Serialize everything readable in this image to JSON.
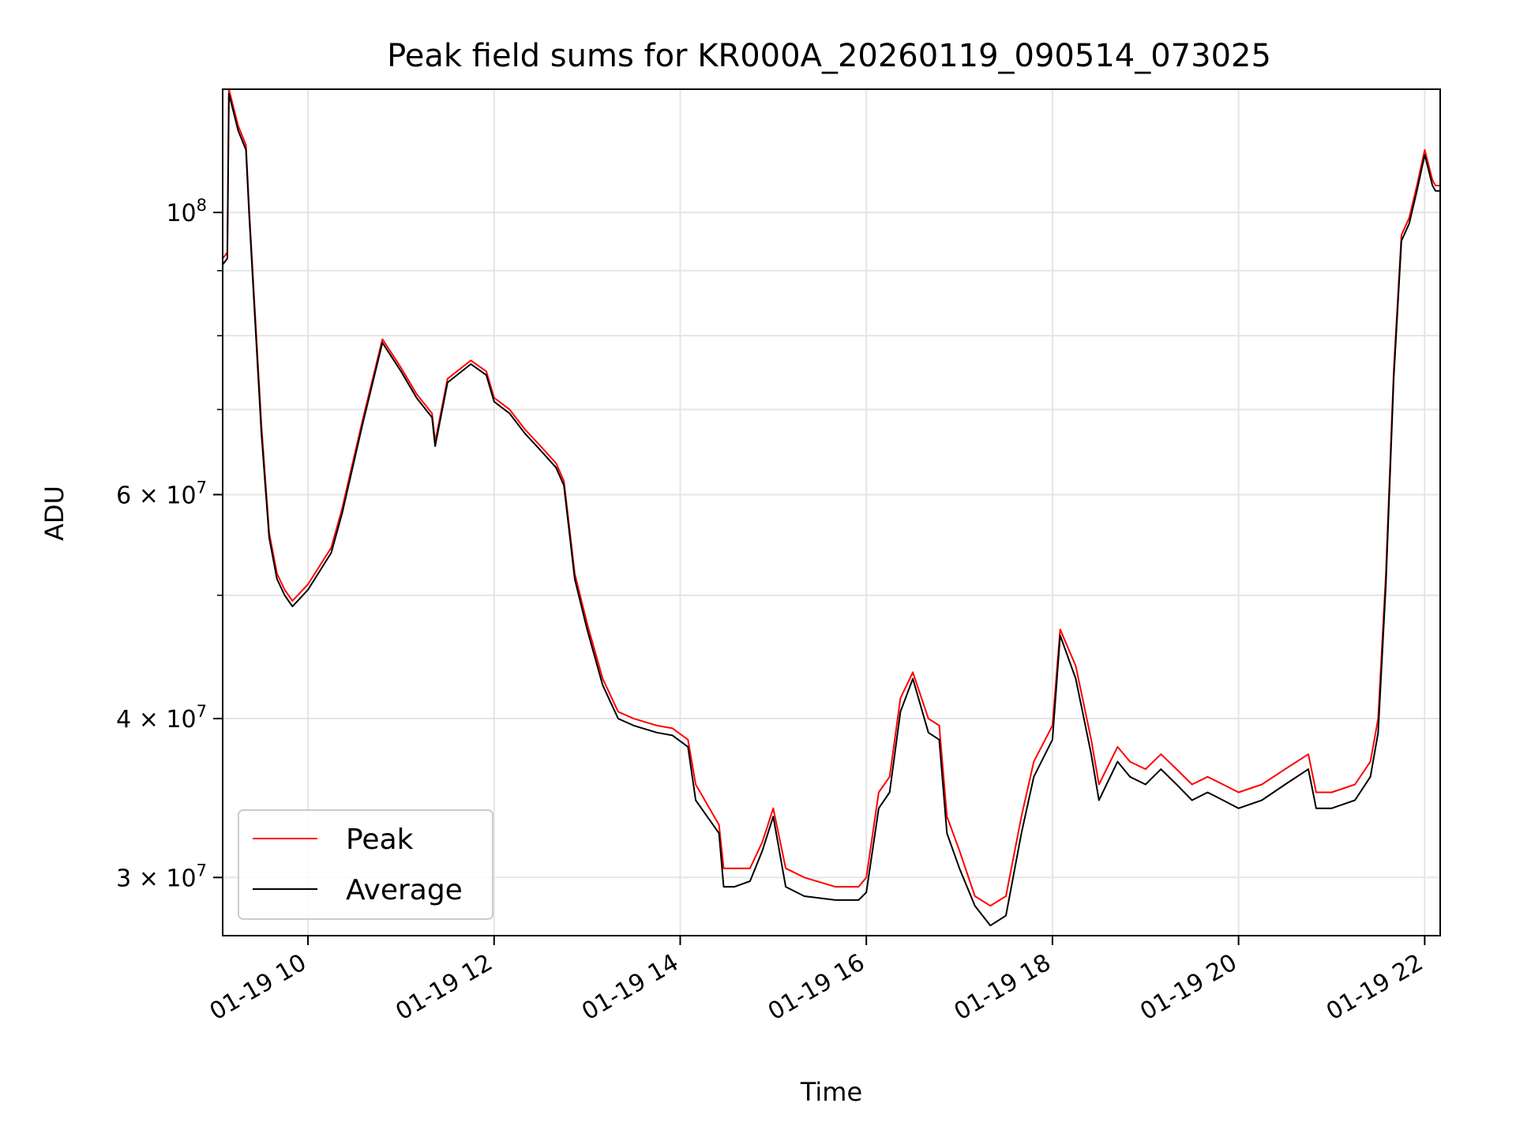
{
  "chart_data": {
    "type": "line",
    "title": "Peak field sums for KR000A_20260119_090514_073025",
    "xlabel": "Time",
    "ylabel": "ADU",
    "xlim": [
      "2026-01-19 09:05",
      "2026-01-19 22:10"
    ],
    "ylim": [
      27000000,
      125000000
    ],
    "yscale": "log",
    "grid": true,
    "legend": {
      "placement": "lower-left"
    },
    "x_ticks": [
      {
        "value": "2026-01-19 10:00",
        "label": "01-19 10"
      },
      {
        "value": "2026-01-19 12:00",
        "label": "01-19 12"
      },
      {
        "value": "2026-01-19 14:00",
        "label": "01-19 14"
      },
      {
        "value": "2026-01-19 16:00",
        "label": "01-19 16"
      },
      {
        "value": "2026-01-19 18:00",
        "label": "01-19 18"
      },
      {
        "value": "2026-01-19 20:00",
        "label": "01-19 20"
      },
      {
        "value": "2026-01-19 22:00",
        "label": "01-19 22"
      }
    ],
    "y_ticks": [
      {
        "value": 30000000,
        "base": "3",
        "mult": "×",
        "exp_base": "10",
        "exp": "7"
      },
      {
        "value": 40000000,
        "base": "4",
        "mult": "×",
        "exp_base": "10",
        "exp": "7"
      },
      {
        "value": 60000000,
        "base": "6",
        "mult": "×",
        "exp_base": "10",
        "exp": "7"
      },
      {
        "value": 100000000,
        "base": "",
        "mult": "",
        "exp_base": "10",
        "exp": "8"
      }
    ],
    "y_minor_ticks": [
      50000000,
      70000000,
      80000000,
      90000000
    ],
    "series": [
      {
        "name": "Peak",
        "color": "#ff0000",
        "x": [
          "2026-01-19 09:05",
          "2026-01-19 09:08",
          "2026-01-19 09:09",
          "2026-01-19 09:15",
          "2026-01-19 09:20",
          "2026-01-19 09:22",
          "2026-01-19 09:25",
          "2026-01-19 09:30",
          "2026-01-19 09:35",
          "2026-01-19 09:40",
          "2026-01-19 09:45",
          "2026-01-19 09:50",
          "2026-01-19 10:00",
          "2026-01-19 10:15",
          "2026-01-19 10:22",
          "2026-01-19 10:35",
          "2026-01-19 10:48",
          "2026-01-19 11:00",
          "2026-01-19 11:10",
          "2026-01-19 11:20",
          "2026-01-19 11:22",
          "2026-01-19 11:30",
          "2026-01-19 11:45",
          "2026-01-19 11:55",
          "2026-01-19 12:00",
          "2026-01-19 12:10",
          "2026-01-19 12:20",
          "2026-01-19 12:30",
          "2026-01-19 12:40",
          "2026-01-19 12:45",
          "2026-01-19 12:52",
          "2026-01-19 13:00",
          "2026-01-19 13:10",
          "2026-01-19 13:20",
          "2026-01-19 13:30",
          "2026-01-19 13:45",
          "2026-01-19 13:55",
          "2026-01-19 14:05",
          "2026-01-19 14:10",
          "2026-01-19 14:25",
          "2026-01-19 14:28",
          "2026-01-19 14:35",
          "2026-01-19 14:45",
          "2026-01-19 14:53",
          "2026-01-19 15:00",
          "2026-01-19 15:08",
          "2026-01-19 15:20",
          "2026-01-19 15:40",
          "2026-01-19 15:55",
          "2026-01-19 16:00",
          "2026-01-19 16:08",
          "2026-01-19 16:15",
          "2026-01-19 16:22",
          "2026-01-19 16:30",
          "2026-01-19 16:40",
          "2026-01-19 16:47",
          "2026-01-19 16:52",
          "2026-01-19 17:00",
          "2026-01-19 17:10",
          "2026-01-19 17:20",
          "2026-01-19 17:30",
          "2026-01-19 17:40",
          "2026-01-19 17:48",
          "2026-01-19 18:00",
          "2026-01-19 18:05",
          "2026-01-19 18:15",
          "2026-01-19 18:25",
          "2026-01-19 18:30",
          "2026-01-19 18:42",
          "2026-01-19 18:50",
          "2026-01-19 19:00",
          "2026-01-19 19:10",
          "2026-01-19 19:20",
          "2026-01-19 19:30",
          "2026-01-19 19:40",
          "2026-01-19 19:50",
          "2026-01-19 20:00",
          "2026-01-19 20:15",
          "2026-01-19 20:30",
          "2026-01-19 20:45",
          "2026-01-19 20:50",
          "2026-01-19 21:00",
          "2026-01-19 21:15",
          "2026-01-19 21:25",
          "2026-01-19 21:30",
          "2026-01-19 21:35",
          "2026-01-19 21:40",
          "2026-01-19 21:45",
          "2026-01-19 21:50",
          "2026-01-19 21:55",
          "2026-01-19 22:00",
          "2026-01-19 22:05",
          "2026-01-19 22:07",
          "2026-01-19 22:10"
        ],
        "y": [
          92000000,
          93000000,
          125000000,
          117000000,
          113000000,
          101000000,
          87000000,
          68000000,
          56000000,
          52000000,
          50500000,
          49500000,
          51000000,
          54500000,
          58500000,
          68500000,
          79500000,
          75500000,
          72000000,
          69500000,
          66000000,
          74000000,
          76500000,
          75000000,
          71500000,
          70000000,
          67500000,
          65500000,
          63500000,
          61500000,
          52000000,
          47500000,
          43000000,
          40500000,
          40000000,
          39500000,
          39300000,
          38500000,
          35500000,
          33000000,
          30500000,
          30500000,
          30500000,
          32000000,
          34000000,
          30500000,
          30000000,
          29500000,
          29500000,
          30000000,
          35000000,
          36000000,
          41500000,
          43500000,
          40000000,
          39500000,
          33500000,
          31500000,
          29000000,
          28500000,
          29000000,
          33500000,
          37000000,
          39500000,
          47000000,
          44000000,
          38500000,
          35500000,
          38000000,
          37000000,
          36500000,
          37500000,
          36500000,
          35500000,
          36000000,
          35500000,
          35000000,
          35500000,
          36500000,
          37500000,
          35000000,
          35000000,
          35500000,
          37000000,
          40000000,
          52000000,
          75000000,
          96000000,
          99000000,
          105000000,
          112000000,
          106000000,
          105000000,
          105000000
        ]
      },
      {
        "name": "Average",
        "color": "#000000",
        "x": [
          "2026-01-19 09:05",
          "2026-01-19 09:08",
          "2026-01-19 09:09",
          "2026-01-19 09:15",
          "2026-01-19 09:20",
          "2026-01-19 09:22",
          "2026-01-19 09:25",
          "2026-01-19 09:30",
          "2026-01-19 09:35",
          "2026-01-19 09:40",
          "2026-01-19 09:45",
          "2026-01-19 09:50",
          "2026-01-19 10:00",
          "2026-01-19 10:15",
          "2026-01-19 10:22",
          "2026-01-19 10:35",
          "2026-01-19 10:48",
          "2026-01-19 11:00",
          "2026-01-19 11:10",
          "2026-01-19 11:20",
          "2026-01-19 11:22",
          "2026-01-19 11:30",
          "2026-01-19 11:45",
          "2026-01-19 11:55",
          "2026-01-19 12:00",
          "2026-01-19 12:10",
          "2026-01-19 12:20",
          "2026-01-19 12:30",
          "2026-01-19 12:40",
          "2026-01-19 12:45",
          "2026-01-19 12:52",
          "2026-01-19 13:00",
          "2026-01-19 13:10",
          "2026-01-19 13:20",
          "2026-01-19 13:30",
          "2026-01-19 13:45",
          "2026-01-19 13:55",
          "2026-01-19 14:05",
          "2026-01-19 14:10",
          "2026-01-19 14:25",
          "2026-01-19 14:28",
          "2026-01-19 14:35",
          "2026-01-19 14:45",
          "2026-01-19 14:53",
          "2026-01-19 15:00",
          "2026-01-19 15:08",
          "2026-01-19 15:20",
          "2026-01-19 15:40",
          "2026-01-19 15:55",
          "2026-01-19 16:00",
          "2026-01-19 16:08",
          "2026-01-19 16:15",
          "2026-01-19 16:22",
          "2026-01-19 16:30",
          "2026-01-19 16:40",
          "2026-01-19 16:47",
          "2026-01-19 16:52",
          "2026-01-19 17:00",
          "2026-01-19 17:10",
          "2026-01-19 17:20",
          "2026-01-19 17:30",
          "2026-01-19 17:40",
          "2026-01-19 17:48",
          "2026-01-19 18:00",
          "2026-01-19 18:05",
          "2026-01-19 18:15",
          "2026-01-19 18:25",
          "2026-01-19 18:30",
          "2026-01-19 18:42",
          "2026-01-19 18:50",
          "2026-01-19 19:00",
          "2026-01-19 19:10",
          "2026-01-19 19:20",
          "2026-01-19 19:30",
          "2026-01-19 19:40",
          "2026-01-19 19:50",
          "2026-01-19 20:00",
          "2026-01-19 20:15",
          "2026-01-19 20:30",
          "2026-01-19 20:45",
          "2026-01-19 20:50",
          "2026-01-19 21:00",
          "2026-01-19 21:15",
          "2026-01-19 21:25",
          "2026-01-19 21:30",
          "2026-01-19 21:35",
          "2026-01-19 21:40",
          "2026-01-19 21:45",
          "2026-01-19 21:50",
          "2026-01-19 21:55",
          "2026-01-19 22:00",
          "2026-01-19 22:05",
          "2026-01-19 22:07",
          "2026-01-19 22:10"
        ],
        "y": [
          91000000,
          92000000,
          124000000,
          116000000,
          112000000,
          100000000,
          86000000,
          67000000,
          55500000,
          51500000,
          50000000,
          49000000,
          50500000,
          54000000,
          58000000,
          68000000,
          79000000,
          75000000,
          71500000,
          69000000,
          65500000,
          73500000,
          76000000,
          74500000,
          71000000,
          69500000,
          67000000,
          65000000,
          63000000,
          61000000,
          51500000,
          47000000,
          42500000,
          40000000,
          39500000,
          39000000,
          38800000,
          38000000,
          34500000,
          32500000,
          29500000,
          29500000,
          29800000,
          31500000,
          33500000,
          29500000,
          29000000,
          28800000,
          28800000,
          29200000,
          34000000,
          35000000,
          40500000,
          43000000,
          39000000,
          38500000,
          32500000,
          30500000,
          28500000,
          27500000,
          28000000,
          32500000,
          36000000,
          38500000,
          46500000,
          43000000,
          37500000,
          34500000,
          37000000,
          36000000,
          35500000,
          36500000,
          35500000,
          34500000,
          35000000,
          34500000,
          34000000,
          34500000,
          35500000,
          36500000,
          34000000,
          34000000,
          34500000,
          36000000,
          39000000,
          51000000,
          74000000,
          95000000,
          98000000,
          104000000,
          111000000,
          105000000,
          104000000,
          104000000
        ]
      }
    ]
  }
}
